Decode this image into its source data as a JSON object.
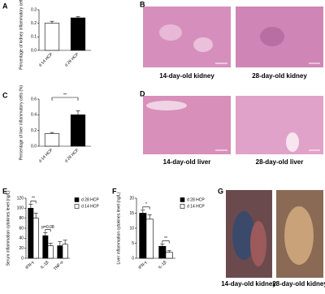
{
  "chart_data": [
    {
      "type": "bar",
      "panel": "A",
      "y_label": "Percentage of kidney inflammatory cells (%)",
      "categories": [
        "d 14 HCP",
        "d 28 HCP"
      ],
      "values": [
        0.2,
        0.24
      ],
      "errors": [
        0.015,
        0.01
      ],
      "colors": [
        "#ffffff",
        "#000000"
      ],
      "ylim": [
        0,
        0.3
      ],
      "yticks": [
        {
          "value": 0,
          "label": "0.0"
        },
        {
          "value": 0.1,
          "label": "0.1"
        },
        {
          "value": 0.2,
          "label": "0.2"
        },
        {
          "value": 0.3,
          "label": "0.3"
        }
      ],
      "annotations": []
    },
    {
      "type": "bar",
      "panel": "C",
      "y_label": "Percentage of liver inflammatory cells (%)",
      "categories": [
        "d 14 HCP",
        "d 28 HCP"
      ],
      "values": [
        0.16,
        0.4
      ],
      "errors": [
        0.015,
        0.05
      ],
      "colors": [
        "#ffffff",
        "#000000"
      ],
      "ylim": [
        0,
        0.6
      ],
      "yticks": [
        {
          "value": 0,
          "label": "0.0"
        },
        {
          "value": 0.2,
          "label": "0.2"
        },
        {
          "value": 0.4,
          "label": "0.4"
        },
        {
          "value": 0.6,
          "label": "0.6"
        }
      ],
      "annotations": [
        "**"
      ]
    },
    {
      "type": "grouped_bar",
      "panel": "E",
      "y_label": "Serum inflammation cytokines level (ng/L)",
      "categories": [
        "IFN-γ",
        "IL-1β",
        "TNF-α"
      ],
      "series": [
        {
          "name": "d 28 HCP",
          "color": "#000000",
          "values": [
            100,
            45,
            25
          ],
          "errors": [
            8,
            6,
            8
          ]
        },
        {
          "name": "d 14 HCP",
          "color": "#ffffff",
          "values": [
            80,
            25,
            28
          ],
          "errors": [
            10,
            5,
            8
          ]
        }
      ],
      "ylim": [
        0,
        120
      ],
      "yticks": [
        0,
        20,
        40,
        60,
        80,
        100,
        120
      ],
      "annotations": [
        "**",
        "p=0.08"
      ]
    },
    {
      "type": "grouped_bar",
      "panel": "F",
      "y_label": "Liver inflammation cytokines level (ng/L)",
      "categories": [
        "IFN-γ",
        "IL-1β"
      ],
      "series": [
        {
          "name": "d 28 HCP",
          "color": "#000000",
          "values": [
            15,
            4
          ],
          "errors": [
            1,
            0.7
          ]
        },
        {
          "name": "d 14 HCP",
          "color": "#ffffff",
          "values": [
            13,
            2
          ],
          "errors": [
            1.5,
            0.5
          ]
        }
      ],
      "ylim": [
        0,
        20
      ],
      "yticks": [
        0,
        5,
        10,
        15,
        20
      ],
      "annotations": [
        "*",
        "**"
      ]
    }
  ],
  "images": [
    {
      "panel": "B",
      "labels": [
        "14-day-old kidney",
        "28-day-old kidney"
      ]
    },
    {
      "panel": "D",
      "labels": [
        "14-day-old liver",
        "28-day-old liver"
      ]
    },
    {
      "panel": "G",
      "labels": [
        "14-day-old kidney",
        "28-day-old kidney"
      ]
    }
  ]
}
